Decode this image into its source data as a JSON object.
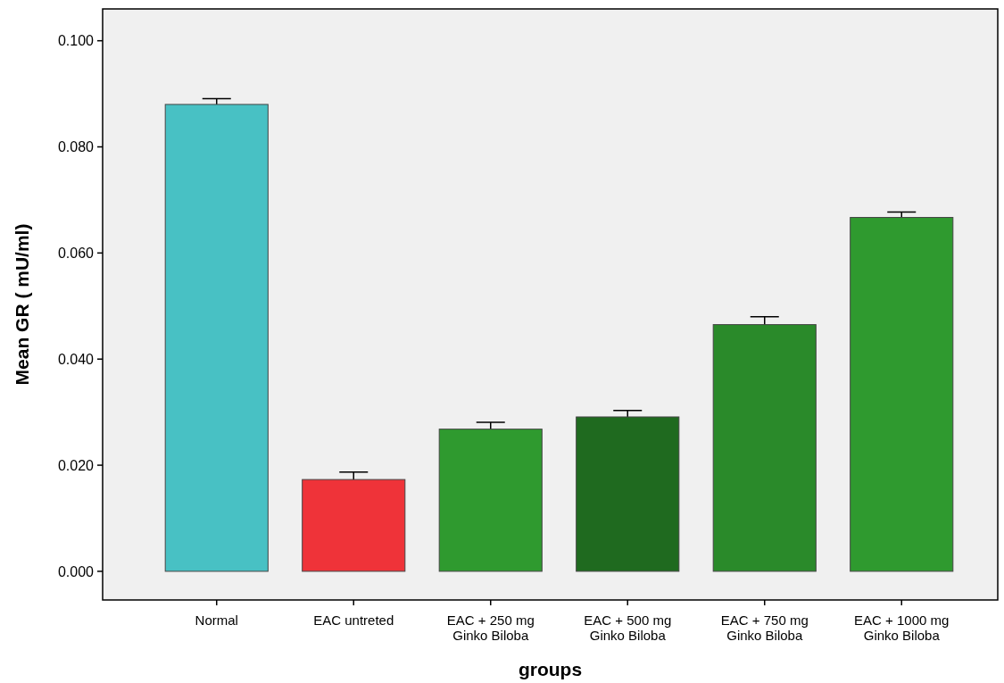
{
  "chart_data": {
    "type": "bar",
    "xlabel": "groups",
    "ylabel": "Mean GR ( mU/ml)",
    "categories": [
      "Normal",
      "EAC untreted",
      "EAC + 250 mg\nGinko Biloba",
      "EAC + 500 mg\nGinko Biloba",
      "EAC + 750 mg\nGinko Biloba",
      "EAC + 1000 mg\nGinko Biloba"
    ],
    "values": [
      0.088,
      0.0173,
      0.0268,
      0.0291,
      0.0465,
      0.0667
    ],
    "errors": [
      0.0011,
      0.0014,
      0.0013,
      0.0012,
      0.0015,
      0.001
    ],
    "colors": [
      "#48c1c4",
      "#ef3339",
      "#2f9a2f",
      "#1f6a1f",
      "#2a8a2a",
      "#2f9a2f"
    ],
    "ylim": [
      -0.0054,
      0.106
    ],
    "yticks": [
      {
        "value": 0,
        "label": "0.000"
      },
      {
        "value": 0.02,
        "label": "0.020"
      },
      {
        "value": 0.04,
        "label": "0.040"
      },
      {
        "value": 0.06,
        "label": "0.060"
      },
      {
        "value": 0.08,
        "label": "0.080"
      },
      {
        "value": 0.1,
        "label": "0.100"
      }
    ],
    "grid": false
  }
}
